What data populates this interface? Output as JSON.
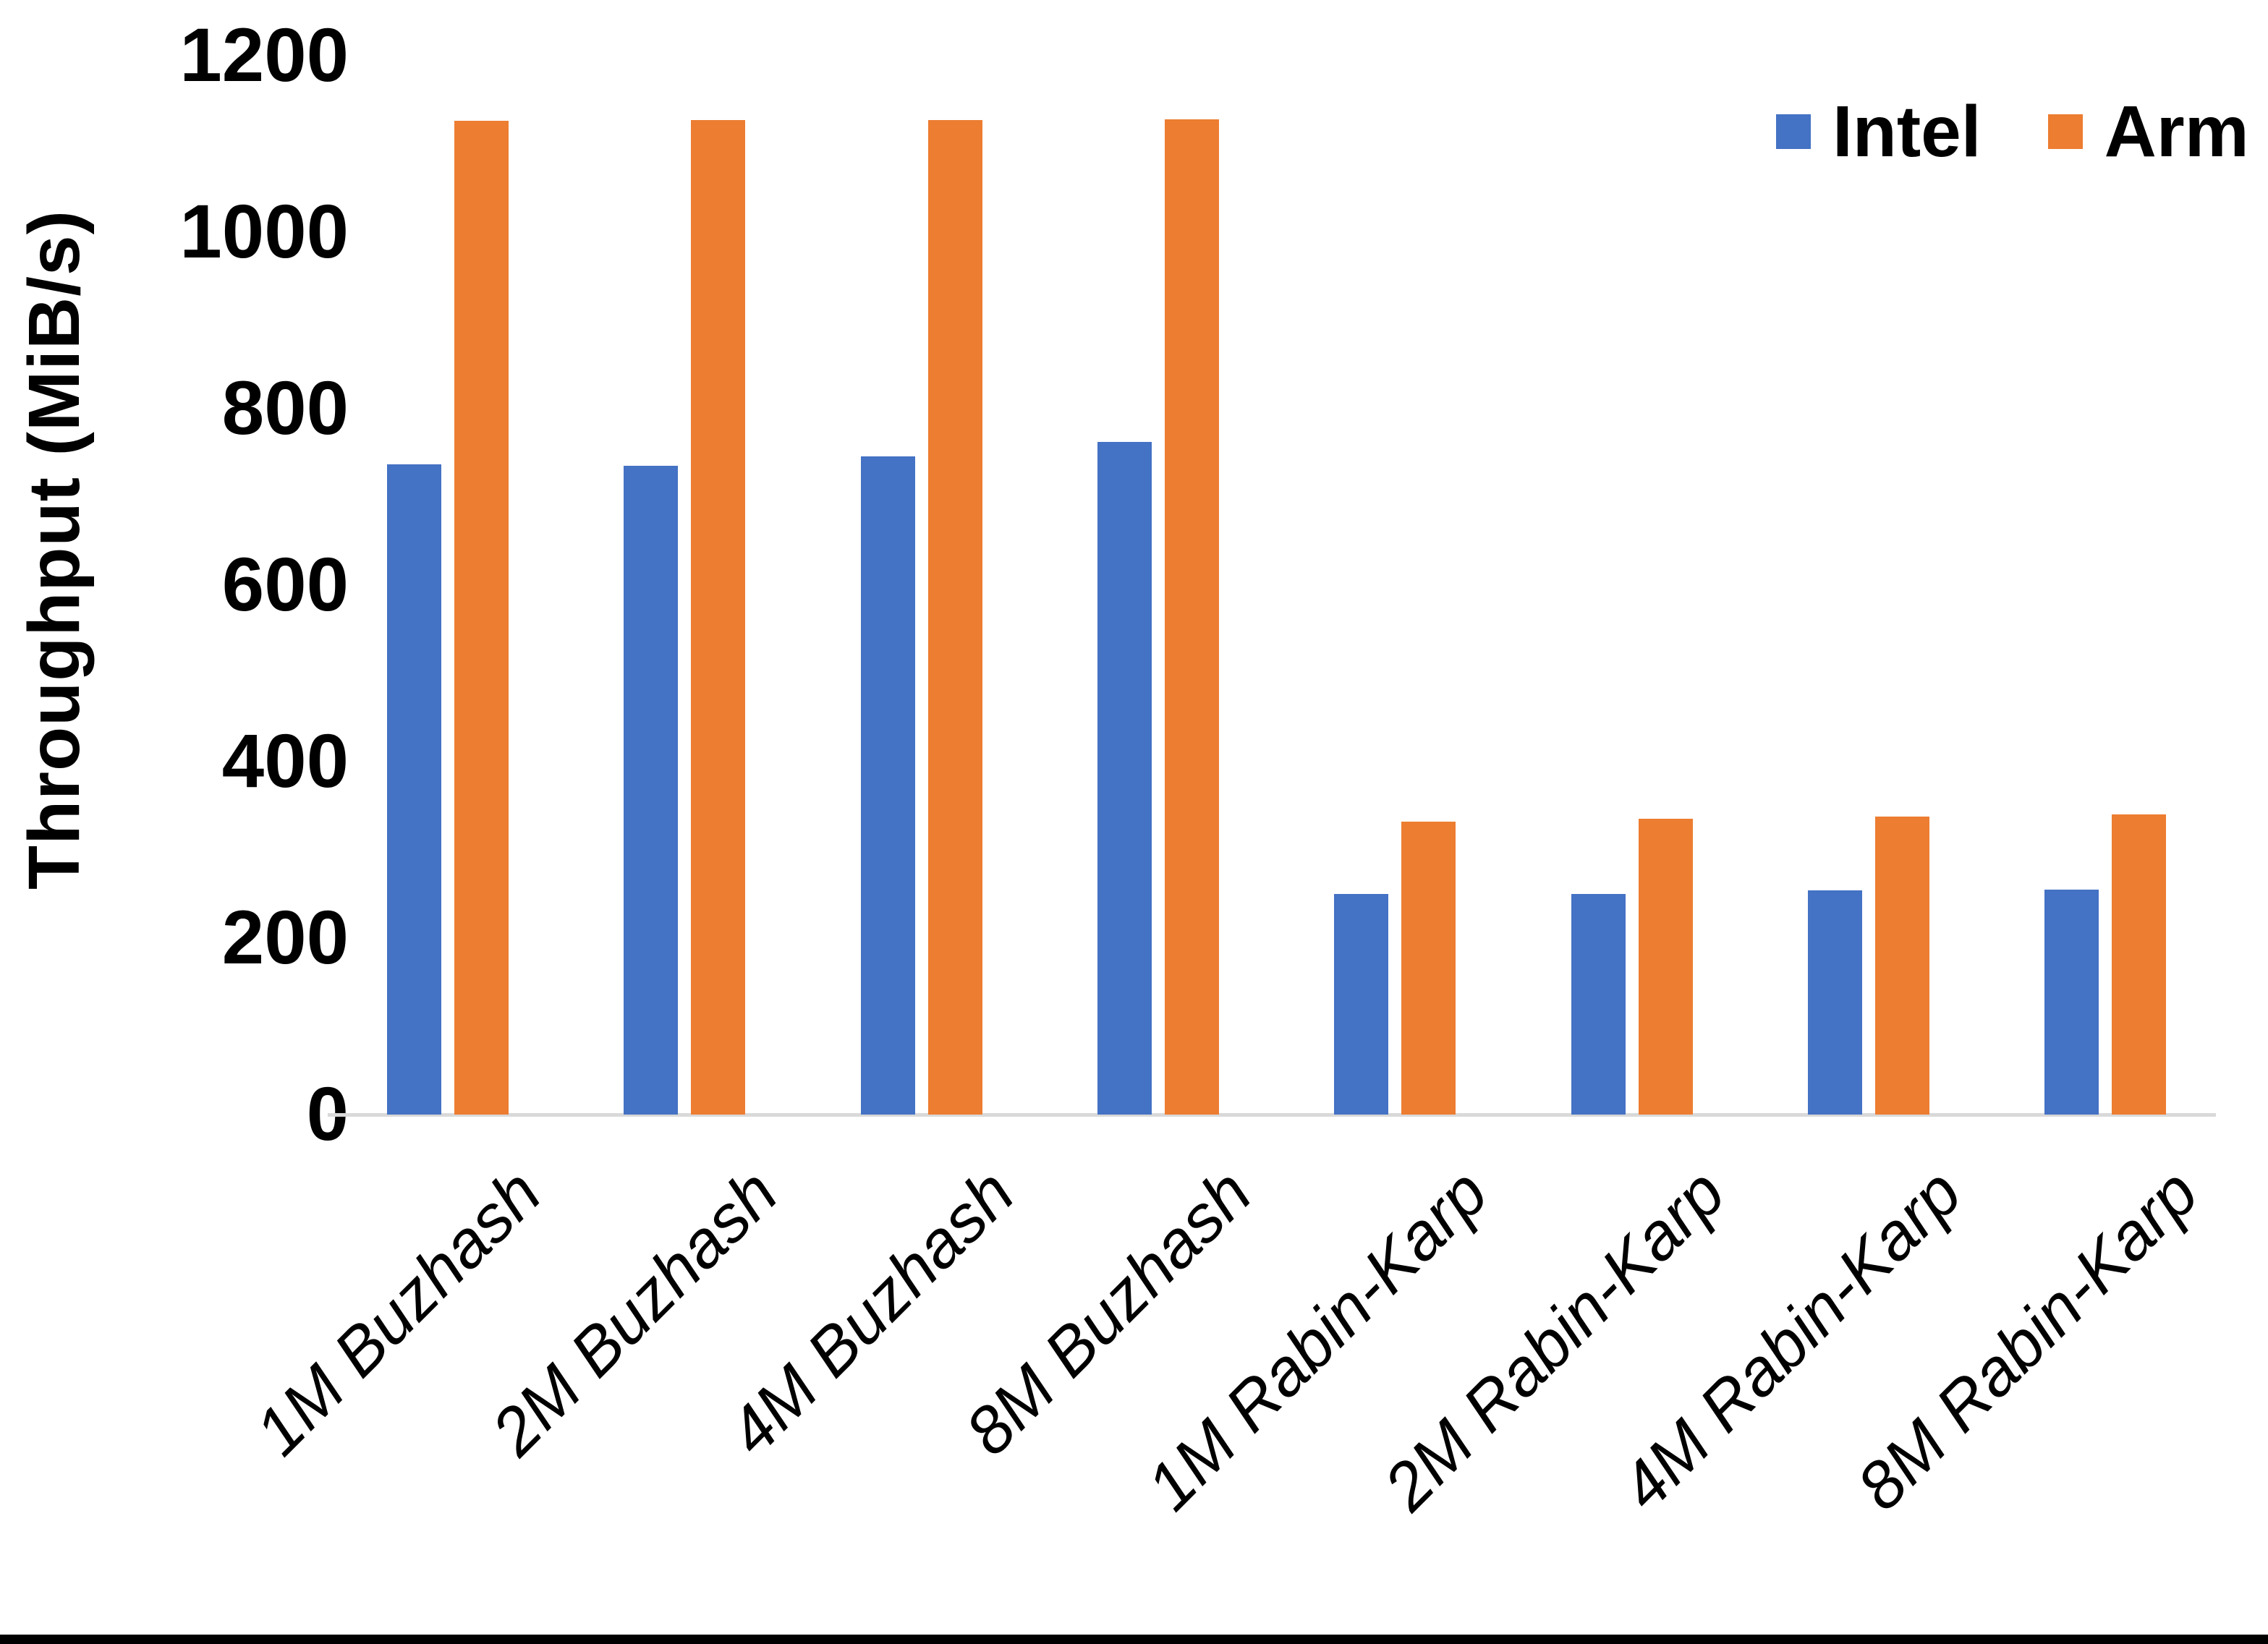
{
  "chart_data": {
    "type": "bar",
    "title": "",
    "categories": [
      "1M Buzhash",
      "2M Buzhash",
      "4M Buzhash",
      "8M Buzhash",
      "1M Rabin-Karp",
      "2M Rabin-Karp",
      "4M Rabin-Karp",
      "8M Rabin-Karp"
    ],
    "series": [
      {
        "name": "Intel",
        "color": "#4472C4",
        "values": [
          737,
          735,
          746,
          762,
          250,
          250,
          254,
          255
        ]
      },
      {
        "name": "Arm",
        "color": "#ED7D31",
        "values": [
          1126,
          1127,
          1127,
          1128,
          332,
          335,
          338,
          340
        ]
      }
    ],
    "xlabel": "",
    "ylabel": "Throughput (MiB/s)",
    "ylim": [
      0,
      1200
    ],
    "yticks": [
      0,
      200,
      400,
      600,
      800,
      1000,
      1200
    ],
    "grid": false,
    "legend_position": "top-right",
    "axis_line_color": "#D9D9D9",
    "text_color": "#000000"
  }
}
